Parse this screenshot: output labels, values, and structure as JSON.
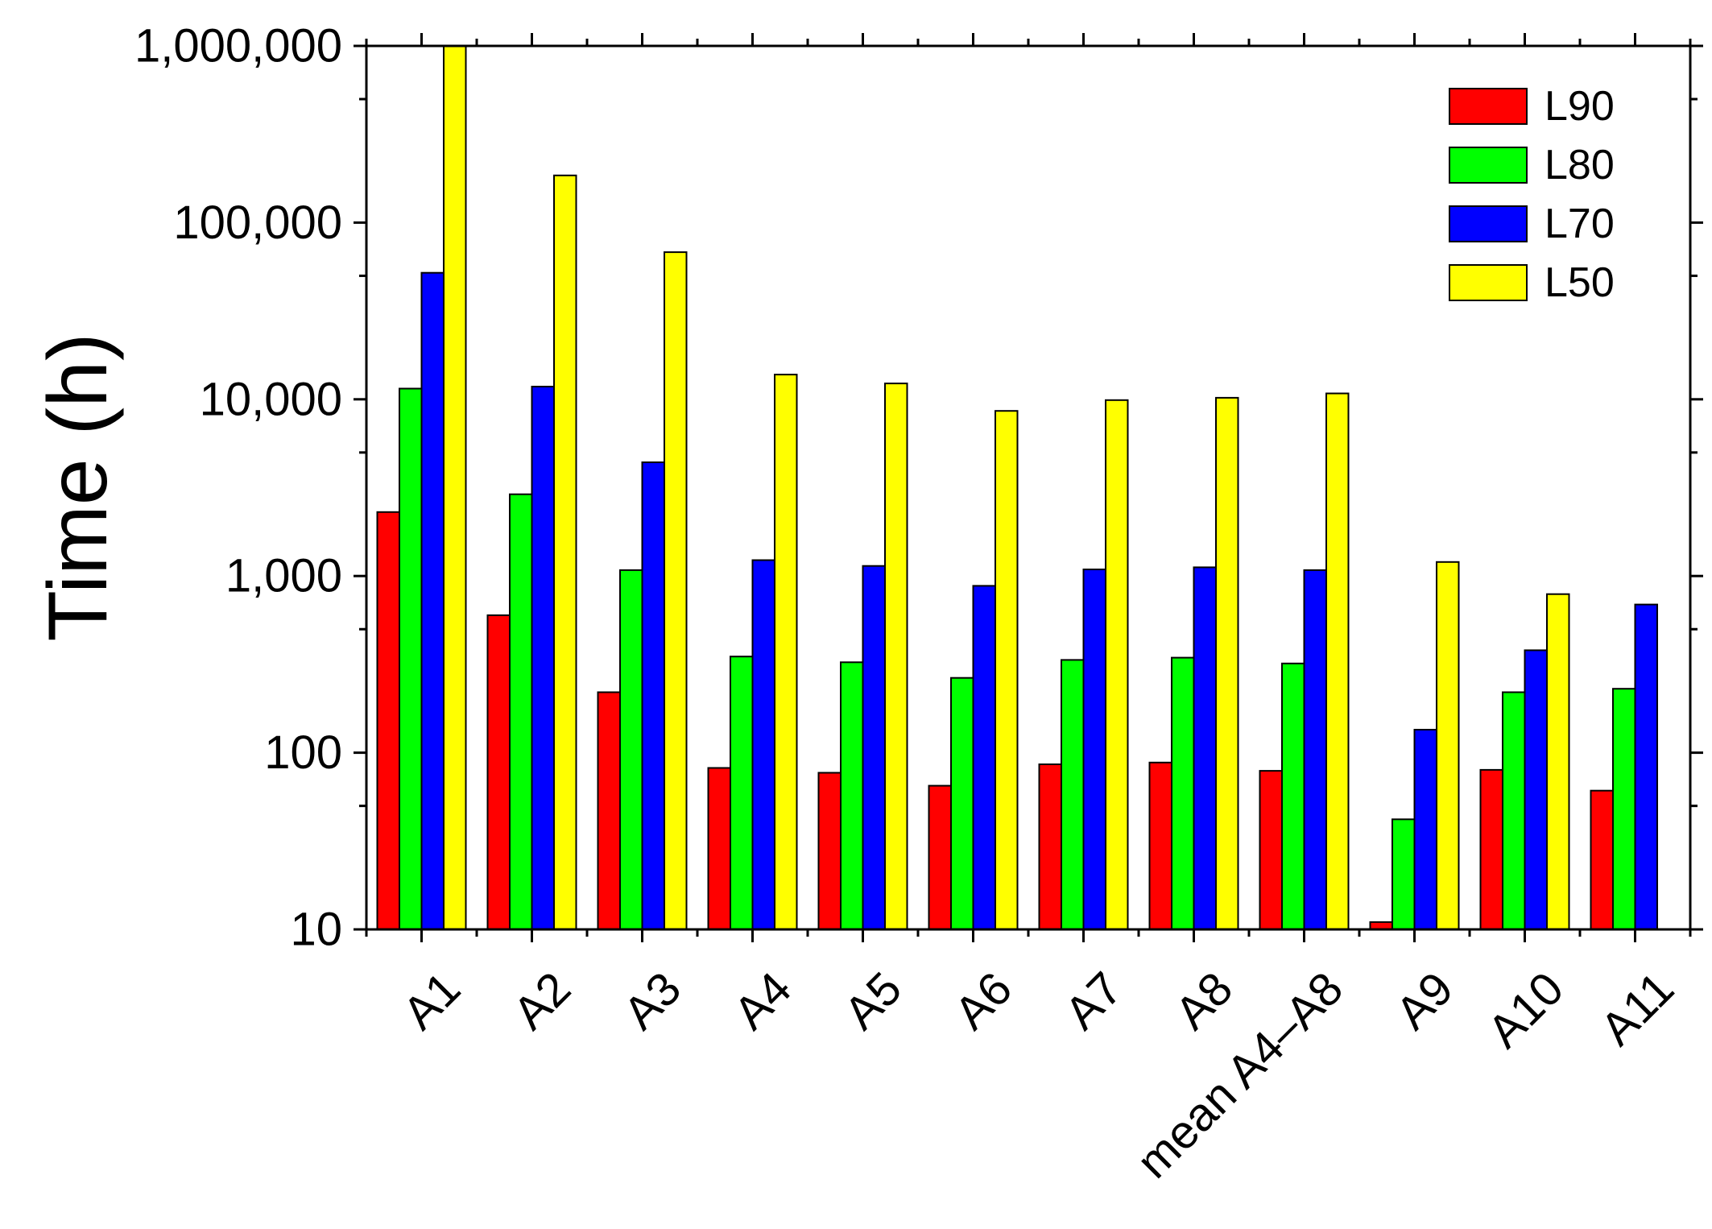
{
  "chart_data": {
    "type": "bar",
    "title": "",
    "xlabel": "",
    "ylabel": "Time (h)",
    "yscale": "log",
    "ylim": [
      10,
      1000000
    ],
    "yticks": [
      10,
      100,
      1000,
      10000,
      100000,
      1000000
    ],
    "ytick_labels": [
      "10",
      "100",
      "1,000",
      "10,000",
      "100,000",
      "1,000,000"
    ],
    "categories": [
      "A1",
      "A2",
      "A3",
      "A4",
      "A5",
      "A6",
      "A7",
      "A8",
      "mean A4–A8",
      "A9",
      "A10",
      "A11"
    ],
    "series": [
      {
        "name": "L90",
        "color": "#ff0000",
        "values": [
          2300,
          600,
          220,
          82,
          77,
          65,
          86,
          88,
          79,
          11,
          80,
          61
        ]
      },
      {
        "name": "L80",
        "color": "#00ff00",
        "values": [
          11500,
          2900,
          1080,
          350,
          325,
          265,
          335,
          345,
          320,
          42,
          220,
          230
        ]
      },
      {
        "name": "L70",
        "color": "#0000ff",
        "values": [
          52000,
          11800,
          4400,
          1230,
          1140,
          880,
          1090,
          1120,
          1080,
          135,
          380,
          690
        ]
      },
      {
        "name": "L50",
        "color": "#ffff00",
        "values": [
          1000000,
          185000,
          68000,
          13800,
          12300,
          8600,
          9900,
          10200,
          10800,
          1200,
          790,
          null
        ]
      }
    ],
    "legend_position": "top-right",
    "grid": false
  }
}
